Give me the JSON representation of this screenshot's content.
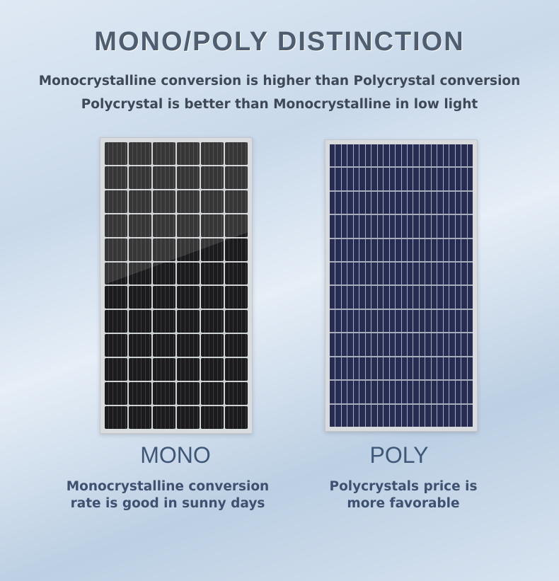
{
  "title": "MONO/POLY DISTINCTION",
  "subtitle_lines": [
    "Monocrystalline conversion is higher than Polycrystal conversion",
    "Polycrystal is better than Monocrystalline in low light"
  ],
  "mono": {
    "label": "MONO",
    "description_lines": [
      "Monocrystalline conversion",
      "rate is good in sunny days"
    ],
    "cell_color": "#1b1b1d"
  },
  "poly": {
    "label": "POLY",
    "description_lines": [
      "Polycrystals price is",
      "more favorable"
    ],
    "cell_color": "#272c52"
  }
}
